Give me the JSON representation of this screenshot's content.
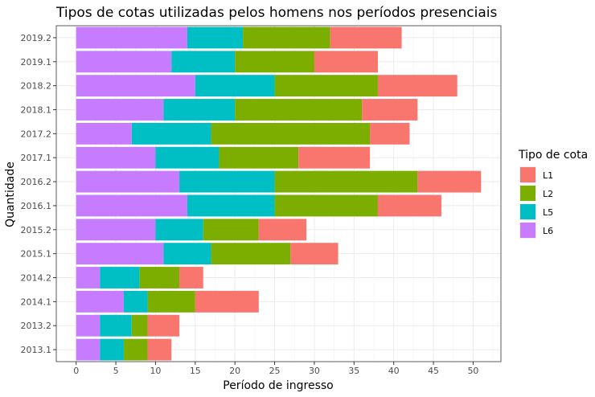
{
  "chart_data": {
    "type": "bar",
    "orientation": "horizontal",
    "stacked": true,
    "title": "Tipos de cotas utilizadas pelos homens nos períodos presenciais",
    "xlabel": "Período de ingresso",
    "ylabel": "Quantidade",
    "xlim": [
      -2.5,
      53.5
    ],
    "x_ticks": [
      0,
      5,
      10,
      15,
      20,
      25,
      30,
      35,
      40,
      45,
      50
    ],
    "grid": true,
    "legend_position": "right",
    "legend_title": "Tipo de cota",
    "categories": [
      "2013.1",
      "2013.2",
      "2014.1",
      "2014.2",
      "2015.1",
      "2015.2",
      "2016.1",
      "2016.2",
      "2017.1",
      "2017.2",
      "2018.1",
      "2018.2",
      "2019.1",
      "2019.2"
    ],
    "series": [
      {
        "name": "L6",
        "color": "#C77CFF",
        "values": [
          3,
          3,
          6,
          3,
          11,
          10,
          14,
          13,
          10,
          7,
          11,
          15,
          12,
          14
        ]
      },
      {
        "name": "L5",
        "color": "#00BFC4",
        "values": [
          3,
          4,
          3,
          5,
          6,
          6,
          11,
          12,
          8,
          10,
          9,
          10,
          8,
          7
        ]
      },
      {
        "name": "L2",
        "color": "#7CAE00",
        "values": [
          3,
          2,
          6,
          5,
          10,
          7,
          13,
          18,
          10,
          20,
          16,
          13,
          10,
          11
        ]
      },
      {
        "name": "L1",
        "color": "#F8766D",
        "values": [
          3,
          4,
          8,
          3,
          6,
          6,
          8,
          8,
          9,
          5,
          7,
          10,
          8,
          9
        ]
      }
    ],
    "legend_order": [
      "L1",
      "L2",
      "L5",
      "L6"
    ]
  }
}
